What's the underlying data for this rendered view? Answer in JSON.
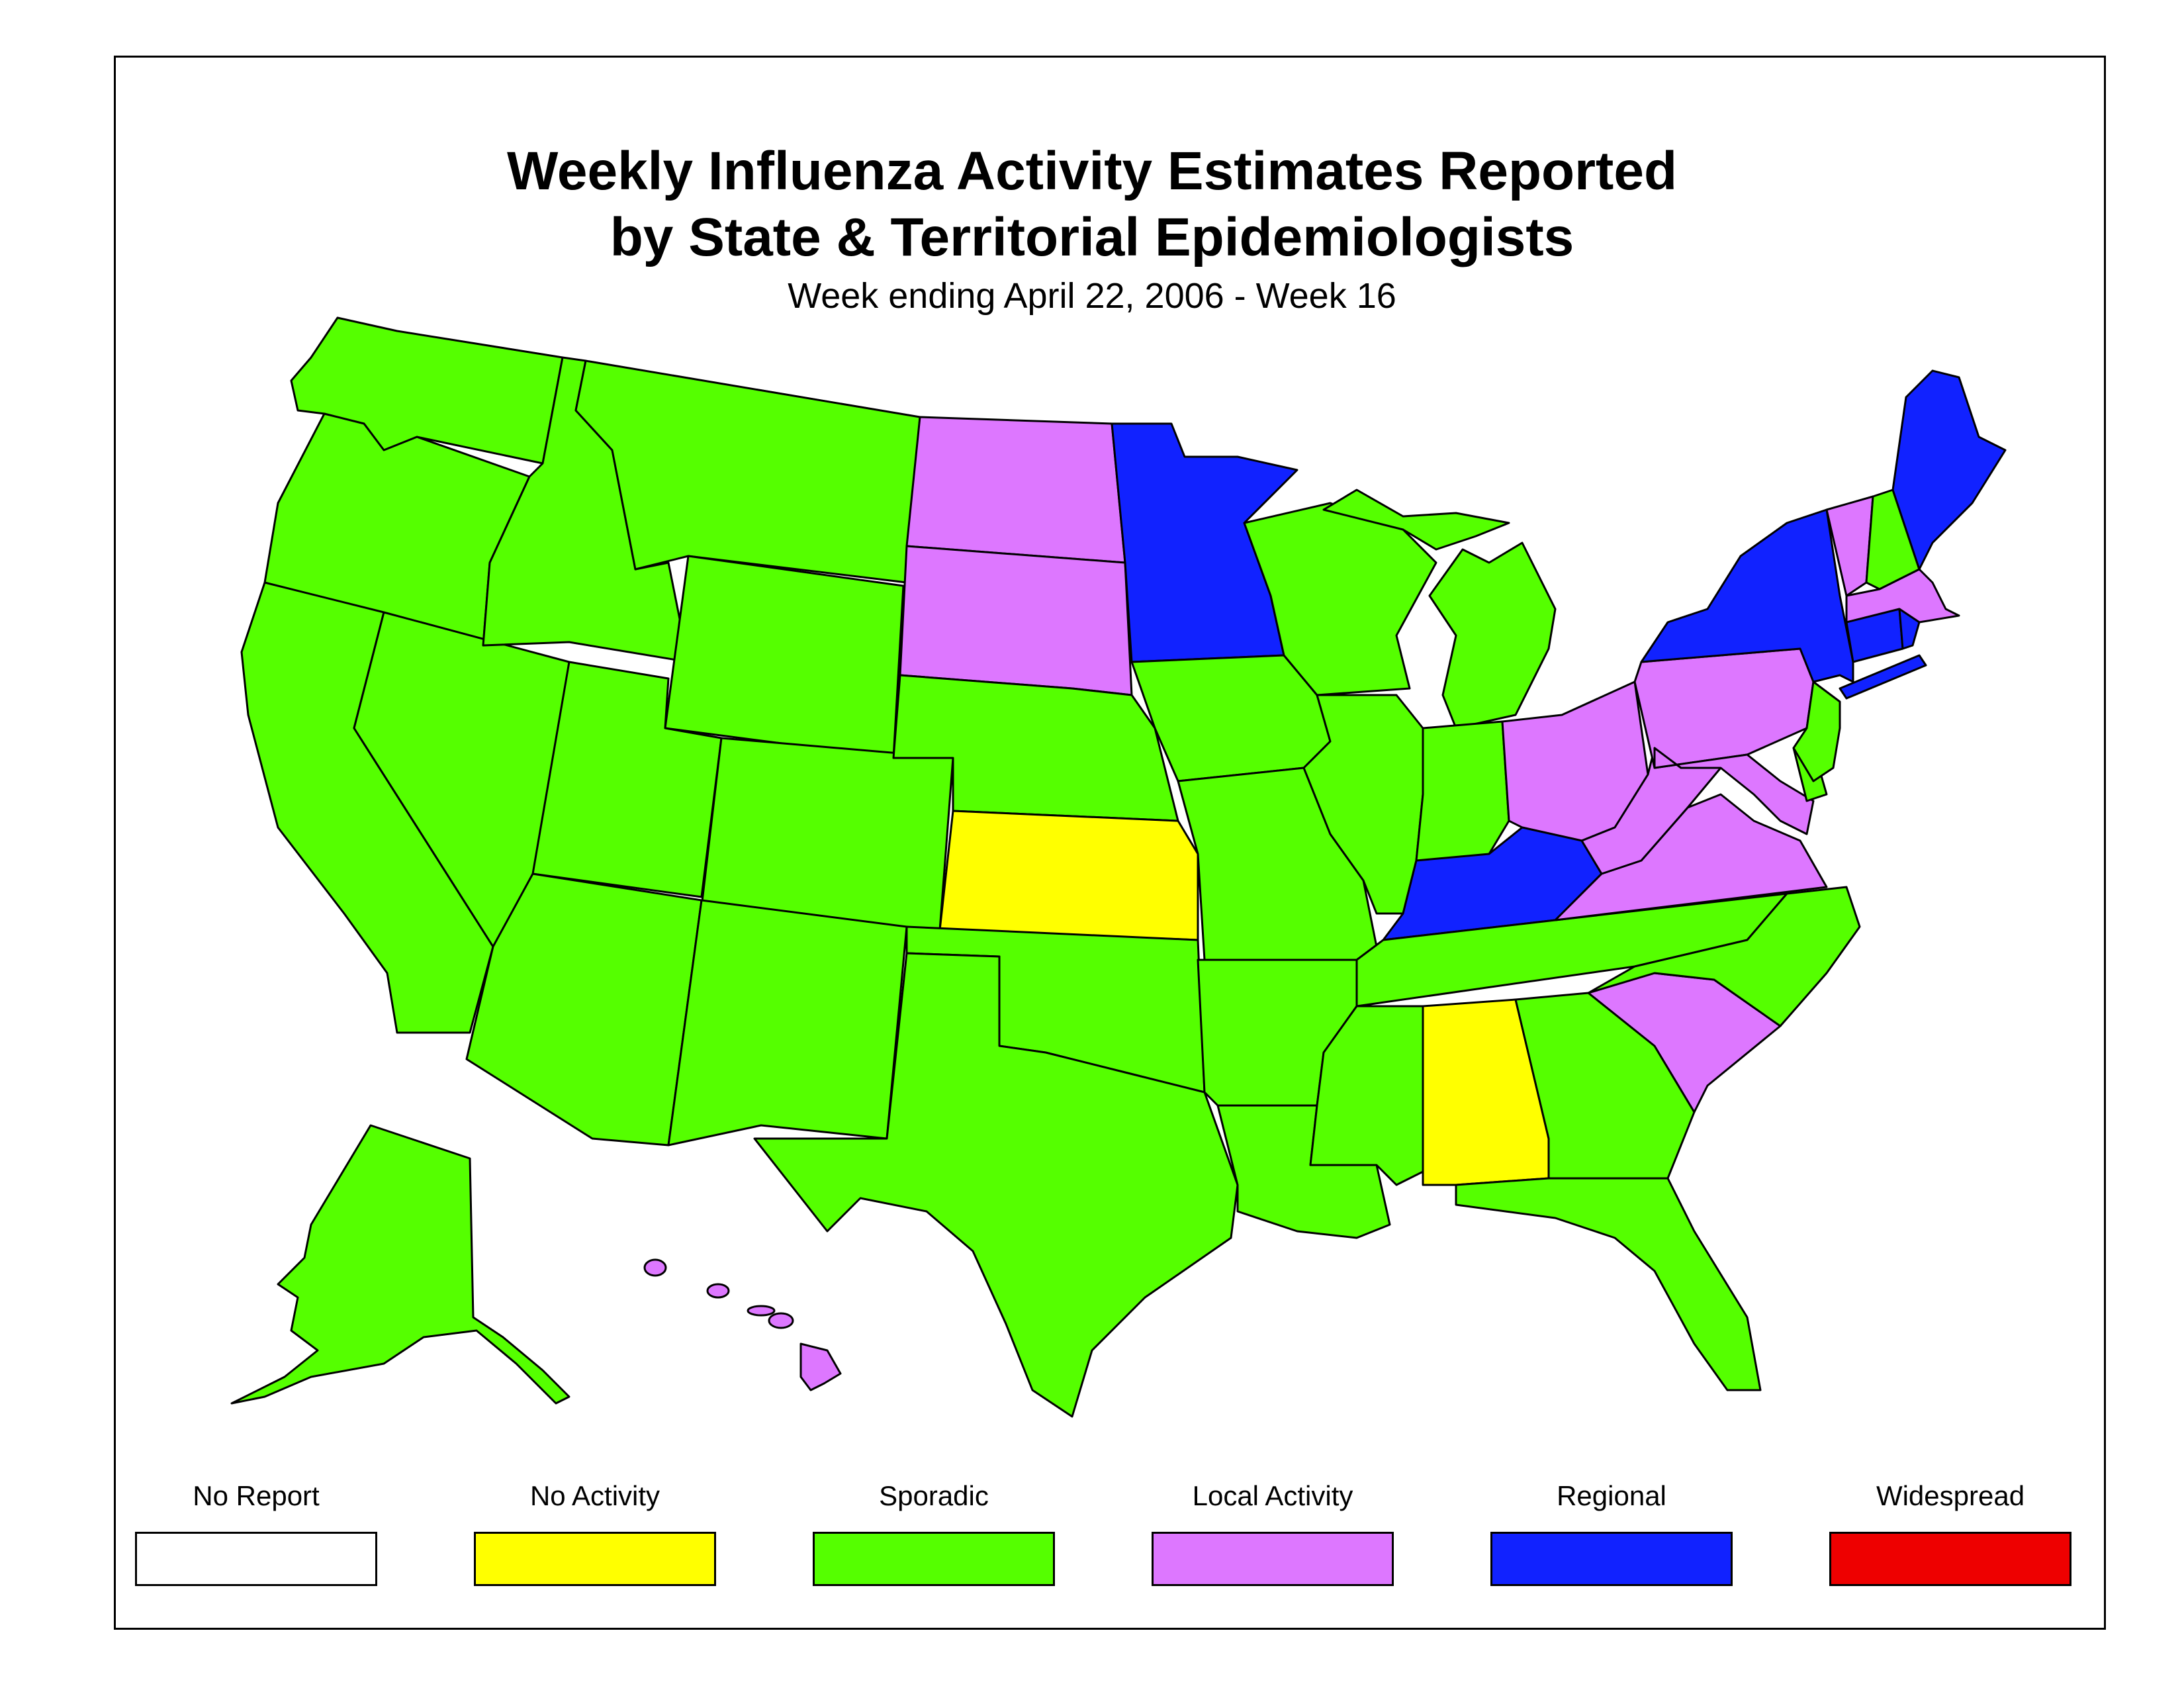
{
  "title_line1": "Weekly Influenza Activity Estimates Reported",
  "title_line2": "by State & Territorial Epidemiologists",
  "subtitle": "Week ending April 22, 2006 - Week 16",
  "legend": [
    {
      "key": "no_report",
      "label": "No Report",
      "color": "#ffffff"
    },
    {
      "key": "no_activity",
      "label": "No Activity",
      "color": "#ffff00"
    },
    {
      "key": "sporadic",
      "label": "Sporadic",
      "color": "#55ff00"
    },
    {
      "key": "local",
      "label": "Local Activity",
      "color": "#dd77ff"
    },
    {
      "key": "regional",
      "label": "Regional",
      "color": "#1122ff"
    },
    {
      "key": "widespread",
      "label": "Widespread",
      "color": "#ee0000"
    }
  ],
  "state_activity": {
    "WA": "sporadic",
    "OR": "sporadic",
    "CA": "sporadic",
    "NV": "sporadic",
    "ID": "sporadic",
    "MT": "sporadic",
    "WY": "sporadic",
    "UT": "sporadic",
    "AZ": "sporadic",
    "CO": "sporadic",
    "NM": "sporadic",
    "ND": "local",
    "SD": "local",
    "NE": "sporadic",
    "KS": "no_activity",
    "OK": "sporadic",
    "TX": "sporadic",
    "MN": "regional",
    "IA": "sporadic",
    "MO": "sporadic",
    "AR": "sporadic",
    "LA": "sporadic",
    "WI": "sporadic",
    "IL": "sporadic",
    "MI": "sporadic",
    "IN": "sporadic",
    "OH": "local",
    "KY": "regional",
    "TN": "sporadic",
    "MS": "sporadic",
    "AL": "no_activity",
    "GA": "sporadic",
    "FL": "sporadic",
    "SC": "local",
    "NC": "sporadic",
    "VA": "local",
    "WV": "local",
    "MD": "local",
    "DE": "sporadic",
    "NJ": "sporadic",
    "PA": "local",
    "NY": "regional",
    "CT": "regional",
    "RI": "regional",
    "MA": "local",
    "VT": "local",
    "NH": "sporadic",
    "ME": "regional",
    "AK": "sporadic",
    "HI": "local"
  }
}
